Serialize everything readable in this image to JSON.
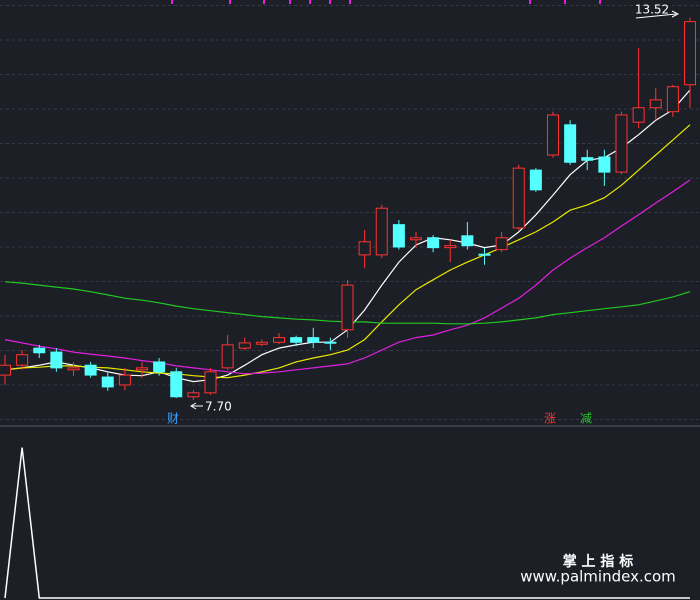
{
  "chart_data": {
    "type": "candlestick",
    "ylim": [
      7.32,
      13.79
    ],
    "up_color": "#ff3232",
    "down_color": "#54ffff",
    "open": [
      8.08,
      8.23,
      8.49,
      8.43,
      8.16,
      8.23,
      8.05,
      7.93,
      8.16,
      8.28,
      8.13,
      7.75,
      7.81,
      8.19,
      8.49,
      8.55,
      8.58,
      8.65,
      8.65,
      8.58,
      8.77,
      9.91,
      9.91,
      10.37,
      10.14,
      10.17,
      10.02,
      10.2,
      9.92,
      9.99,
      10.32,
      11.2,
      11.43,
      11.89,
      11.39,
      11.4,
      11.17,
      11.93,
      12.15,
      12.09,
      12.5
    ],
    "close": [
      8.23,
      8.39,
      8.42,
      8.19,
      8.19,
      8.08,
      7.9,
      8.08,
      8.19,
      8.13,
      7.75,
      7.81,
      8.13,
      8.54,
      8.57,
      8.58,
      8.65,
      8.58,
      8.58,
      8.57,
      9.45,
      10.11,
      10.62,
      10.03,
      10.17,
      10.02,
      10.05,
      10.05,
      9.91,
      10.17,
      11.23,
      10.9,
      12.04,
      11.32,
      11.35,
      11.17,
      12.04,
      12.15,
      12.27,
      12.47,
      13.46
    ],
    "high": [
      8.39,
      8.46,
      8.54,
      8.49,
      8.28,
      8.28,
      8.13,
      8.19,
      8.28,
      8.34,
      8.19,
      7.85,
      8.19,
      8.69,
      8.65,
      8.62,
      8.72,
      8.68,
      8.8,
      8.65,
      9.53,
      10.29,
      10.67,
      10.44,
      10.26,
      10.21,
      10.14,
      10.41,
      10.02,
      10.26,
      11.28,
      11.23,
      12.09,
      11.96,
      11.51,
      11.51,
      12.09,
      13.06,
      12.45,
      12.5,
      13.52
    ],
    "low": [
      7.93,
      8.16,
      8.34,
      8.13,
      8.07,
      8.04,
      7.84,
      7.85,
      8.04,
      8.07,
      7.73,
      7.7,
      7.78,
      8.16,
      8.46,
      8.52,
      8.55,
      8.52,
      8.49,
      8.46,
      8.65,
      9.71,
      9.86,
      9.99,
      10.02,
      9.95,
      9.8,
      9.99,
      9.76,
      9.95,
      10.29,
      10.87,
      11.39,
      11.28,
      11.2,
      10.96,
      11.14,
      11.84,
      11.96,
      12.01,
      12.15
    ],
    "lines": [
      {
        "color": "#ffffff",
        "values": [
          8.16,
          8.19,
          8.23,
          8.28,
          8.23,
          8.19,
          8.13,
          8.08,
          8.07,
          8.13,
          8.04,
          7.98,
          8.01,
          8.08,
          8.23,
          8.39,
          8.49,
          8.54,
          8.58,
          8.58,
          8.77,
          9.07,
          9.45,
          9.8,
          10.06,
          10.17,
          10.14,
          10.09,
          10.02,
          10.06,
          10.26,
          10.52,
          10.82,
          11.13,
          11.35,
          11.39,
          11.54,
          11.74,
          11.96,
          12.12,
          12.42
        ]
      },
      {
        "color": "#e8e800",
        "values": [
          8.16,
          8.19,
          8.2,
          8.22,
          8.22,
          8.2,
          8.19,
          8.16,
          8.13,
          8.11,
          8.1,
          8.07,
          8.05,
          8.04,
          8.08,
          8.13,
          8.19,
          8.28,
          8.34,
          8.39,
          8.46,
          8.62,
          8.89,
          9.15,
          9.38,
          9.53,
          9.68,
          9.8,
          9.91,
          10.02,
          10.14,
          10.26,
          10.41,
          10.59,
          10.67,
          10.78,
          10.97,
          11.2,
          11.43,
          11.66,
          11.89
        ]
      },
      {
        "color": "#e020e0",
        "values": [
          8.62,
          8.57,
          8.52,
          8.48,
          8.43,
          8.4,
          8.37,
          8.34,
          8.3,
          8.27,
          8.22,
          8.19,
          8.16,
          8.13,
          8.1,
          8.11,
          8.13,
          8.16,
          8.19,
          8.22,
          8.25,
          8.34,
          8.46,
          8.58,
          8.65,
          8.69,
          8.77,
          8.84,
          8.95,
          9.1,
          9.25,
          9.45,
          9.68,
          9.86,
          10.02,
          10.17,
          10.35,
          10.52,
          10.7,
          10.87,
          11.05
        ]
      },
      {
        "color": "#22c822",
        "values": [
          9.5,
          9.48,
          9.45,
          9.42,
          9.39,
          9.35,
          9.3,
          9.25,
          9.22,
          9.18,
          9.13,
          9.09,
          9.06,
          9.03,
          9.0,
          8.97,
          8.95,
          8.93,
          8.92,
          8.9,
          8.89,
          8.89,
          8.87,
          8.87,
          8.87,
          8.87,
          8.86,
          8.86,
          8.87,
          8.89,
          8.92,
          8.95,
          9.0,
          9.03,
          9.06,
          9.09,
          9.12,
          9.15,
          9.21,
          9.27,
          9.35
        ]
      }
    ],
    "annotations": [
      {
        "text": "13.52"
      },
      {
        "text": "7.70"
      }
    ],
    "markers": [
      {
        "text": "财",
        "color": "#3aa0ff"
      },
      {
        "text": "涨",
        "color": "#ff3232"
      },
      {
        "text": "减",
        "color": "#22c822"
      }
    ],
    "indicator": {
      "color": "#ffffff",
      "ylim": [
        0,
        1.13
      ],
      "values": [
        0,
        1,
        0,
        0,
        0,
        0,
        0,
        0,
        0,
        0,
        0,
        0,
        0,
        0,
        0,
        0,
        0,
        0,
        0,
        0,
        0,
        0,
        0,
        0,
        0,
        0,
        0,
        0,
        0,
        0,
        0,
        0,
        0,
        0,
        0,
        0,
        0,
        0,
        0,
        0,
        0
      ]
    }
  },
  "watermark": {
    "title": "掌 上 指 标",
    "url": "www.palmindex.com"
  }
}
